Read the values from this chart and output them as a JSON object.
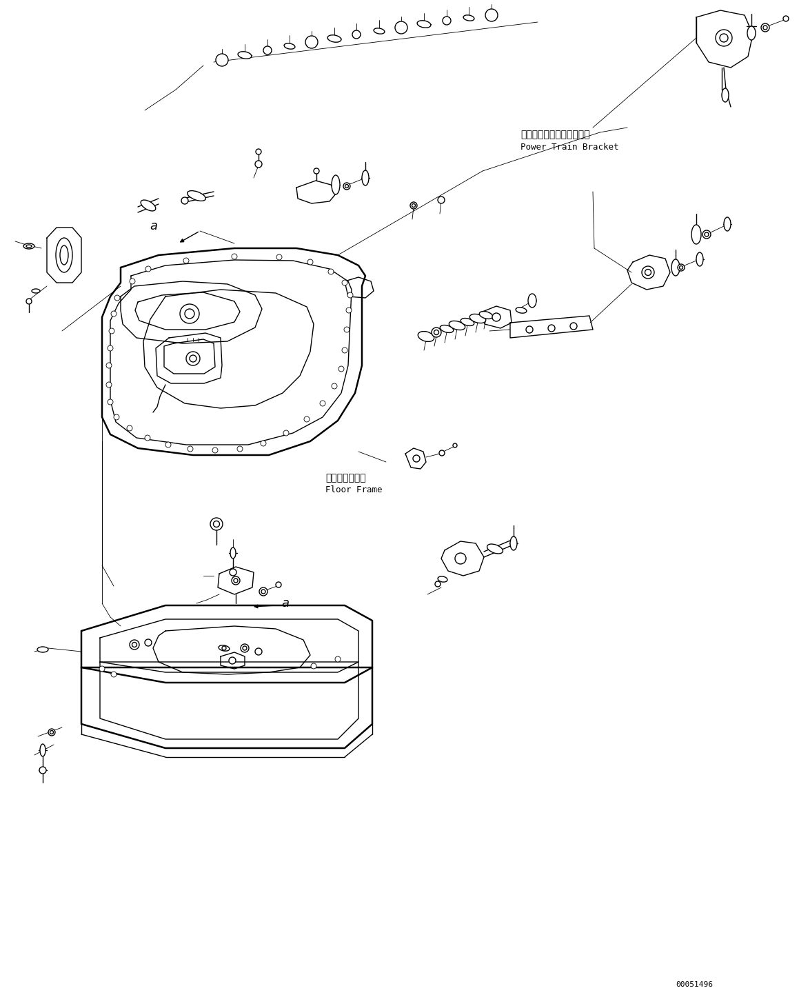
{
  "figure_width": 11.59,
  "figure_height": 14.59,
  "dpi": 100,
  "bg_color": "#ffffff",
  "line_color": "#000000",
  "lw": 1.0,
  "lw_thick": 1.8,
  "lw_thin": 0.6,
  "label1_jp": "パワートレインブラケット",
  "label1_en": "Power Train Bracket",
  "label2_jp": "フロアフレーム",
  "label2_en": "Floor Frame",
  "label_a": "a",
  "part_number": "00051496",
  "fs_jp": 10,
  "fs_en": 9,
  "fs_a": 13,
  "fs_pn": 8
}
